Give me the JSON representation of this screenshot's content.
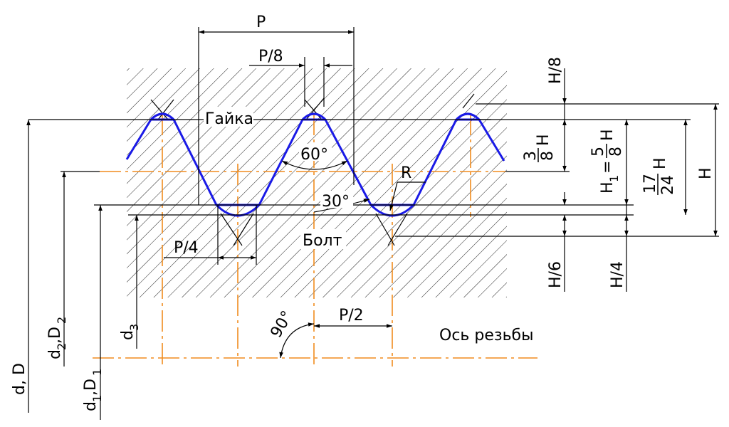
{
  "colors": {
    "profile": "#1a1ae6",
    "axis": "#f08c1e",
    "line": "#000000",
    "hatch": "#222222"
  },
  "labels": {
    "p": "P",
    "p8": "P/8",
    "p4": "P/4",
    "p2": "P/2",
    "nut": "Гайка",
    "bolt": "Болт",
    "axis": "Ось резьбы",
    "a60": "60°",
    "a30": "30°",
    "a90": "90°",
    "r": "R",
    "h8": "H/8",
    "h3_8_num": "3",
    "h3_8_den": "8",
    "h3_8_h": "H",
    "h1": "H",
    "h1_sub": "1",
    "h1_eq": "=",
    "h1_num": "5",
    "h1_den": "8",
    "h1_h": "H",
    "h17_num": "17",
    "h17_den": "24",
    "h17_h": "H",
    "h": "H",
    "h6": "H/6",
    "h4": "H/4",
    "d_main": "d, D",
    "d2_main": "d",
    "d2_sub": "2",
    "d2_mid": ",D",
    "d2_sub2": "2",
    "d1_main": "d",
    "d1_sub": "1",
    "d1_mid": ",D",
    "d1_sub2": "1",
    "d3_main": "d",
    "d3_sub": "3"
  }
}
